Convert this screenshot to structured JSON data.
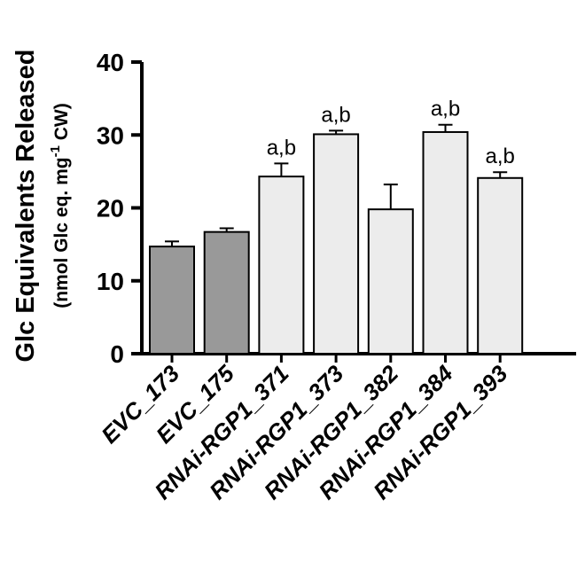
{
  "chart_data": {
    "type": "bar",
    "categories": [
      "EVC_173",
      "EVC_175",
      "RNAi-RGP1_371",
      "RNAi-RGP1_373",
      "RNAi-RGP1_382",
      "RNAi-RGP1_384",
      "RNAi-RGP1_393"
    ],
    "values": [
      14.7,
      16.7,
      24.3,
      30.1,
      19.8,
      30.4,
      24.1
    ],
    "errors": [
      0.7,
      0.5,
      1.8,
      0.5,
      3.4,
      1.0,
      0.8
    ],
    "annotations": [
      "",
      "",
      "a,b",
      "a,b",
      "",
      "a,b",
      "a,b"
    ],
    "bar_colors": [
      "#999999",
      "#999999",
      "#ececec",
      "#ececec",
      "#ececec",
      "#ececec",
      "#ececec"
    ],
    "ylim": [
      0,
      40
    ],
    "yticks": [
      "0",
      "10",
      "20",
      "30",
      "40"
    ],
    "ylabel": {
      "line1": "Glc Equivalents Released",
      "line2_prefix": "(nmol Glc eq. mg",
      "line2_sup": "-1",
      "line2_suffix": " CW)"
    },
    "xlabel": ""
  }
}
